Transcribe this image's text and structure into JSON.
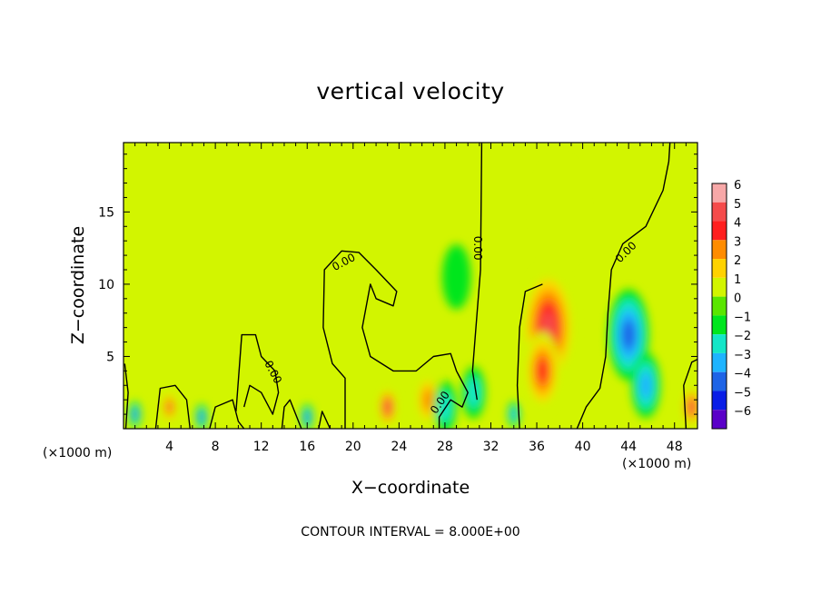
{
  "chart_data": {
    "type": "heatmap",
    "title": "vertical velocity",
    "xlabel": "X−coordinate",
    "ylabel": "Z−coordinate",
    "x_unit": "(×1000 m)",
    "y_unit": "(×1000 m)",
    "xlim": [
      0,
      50
    ],
    "ylim": [
      0,
      19.8
    ],
    "x_ticks": [
      4,
      8,
      12,
      16,
      20,
      24,
      28,
      32,
      36,
      40,
      44,
      48
    ],
    "y_ticks": [
      5,
      10,
      15
    ],
    "colorbar": {
      "labels": [
        "6",
        "5",
        "4",
        "3",
        "2",
        "1",
        "0",
        "−1",
        "−2",
        "−3",
        "−4",
        "−5",
        "−6"
      ],
      "levels": [
        6,
        5,
        4,
        3,
        2,
        1,
        0,
        -1,
        -2,
        -3,
        -4,
        -5,
        -6
      ],
      "colors": [
        "#f7a8a8",
        "#f54b4b",
        "#ff1e1e",
        "#ff8c00",
        "#ffd200",
        "#d2f500",
        "#5ae600",
        "#00e61e",
        "#14e6c8",
        "#1eb4ff",
        "#1e64e6",
        "#0a1ee6",
        "#5a00c8"
      ]
    },
    "contour_labels": [
      "0.00",
      "0.00",
      "0.00",
      "0.00",
      "0.00"
    ],
    "features": [
      {
        "x": 37,
        "z": 7,
        "w": 4.5,
        "value": 5
      },
      {
        "x": 36.5,
        "z": 4,
        "w": 3.0,
        "value": 4
      },
      {
        "x": 44,
        "z": 6.5,
        "w": 3.5,
        "value": -4
      },
      {
        "x": 45.5,
        "z": 3,
        "w": 2.5,
        "value": -3
      },
      {
        "x": 23,
        "z": 1.5,
        "w": 1.5,
        "value": 5
      },
      {
        "x": 26.5,
        "z": 2,
        "w": 2.0,
        "value": 3
      },
      {
        "x": 49.5,
        "z": 1.5,
        "w": 1.5,
        "value": 5
      },
      {
        "x": 4,
        "z": 1.5,
        "w": 1.2,
        "value": 4
      },
      {
        "x": 1,
        "z": 1,
        "w": 1.0,
        "value": -4
      },
      {
        "x": 6.8,
        "z": 0.8,
        "w": 1.0,
        "value": -4
      },
      {
        "x": 16,
        "z": 0.8,
        "w": 1.0,
        "value": -4
      },
      {
        "x": 34,
        "z": 1,
        "w": 1.0,
        "value": -3
      },
      {
        "x": 28,
        "z": 1.5,
        "w": 2.0,
        "value": -2
      },
      {
        "x": 30.5,
        "z": 2.5,
        "w": 2.0,
        "value": -2
      },
      {
        "x": 38,
        "z": 15,
        "w": 4.0,
        "value": 1
      },
      {
        "x": 29,
        "z": 10.5,
        "w": 2.5,
        "value": -1
      }
    ],
    "footer": "CONTOUR INTERVAL = 8.000E+00"
  }
}
